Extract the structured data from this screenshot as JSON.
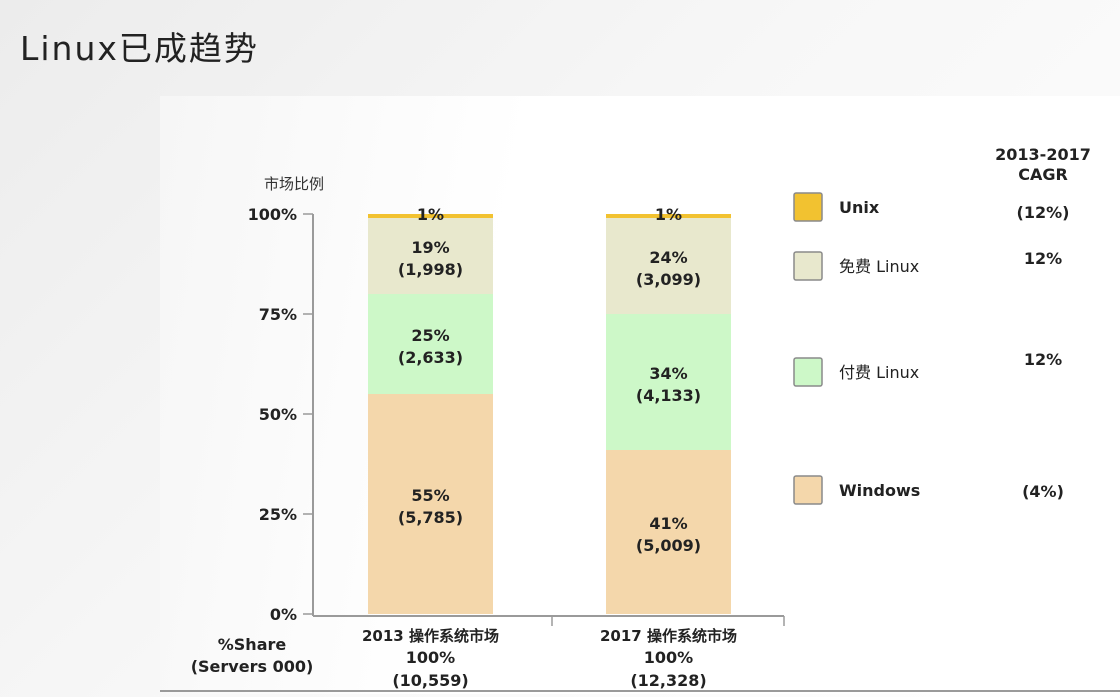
{
  "page": {
    "title": "Linux已成趋势"
  },
  "chart_data": {
    "type": "bar",
    "stacked": true,
    "ylabel": "市场比例",
    "ylim": [
      0,
      100
    ],
    "yticks": [
      "0%",
      "25%",
      "50%",
      "75%",
      "100%"
    ],
    "categories": [
      {
        "name": "2013 操作系统市场",
        "total_pct": "100%",
        "total_servers": "(10,559)"
      },
      {
        "name": "2017 操作系统市场",
        "total_pct": "100%",
        "total_servers": "(12,328)"
      }
    ],
    "row_label": [
      "%Share",
      "(Servers 000)"
    ],
    "series": [
      {
        "name": "Windows",
        "color": "#f4d7ab",
        "cagr": "(4%)",
        "values": [
          55,
          41
        ],
        "servers": [
          "(5,785)",
          "(5,009)"
        ],
        "labels": [
          "55%",
          "41%"
        ]
      },
      {
        "name": "付费 Linux",
        "color": "#cdf8c8",
        "cagr": "12%",
        "values": [
          25,
          34
        ],
        "servers": [
          "(2,633)",
          "(4,133)"
        ],
        "labels": [
          "25%",
          "34%"
        ]
      },
      {
        "name": "免费 Linux",
        "color": "#e8e8cd",
        "cagr": "12%",
        "values": [
          19,
          24
        ],
        "servers": [
          "(1,998)",
          "(3,099)"
        ],
        "labels": [
          "19%",
          "24%"
        ]
      },
      {
        "name": "Unix",
        "color": "#f2c230",
        "cagr": "(12%)",
        "values": [
          1,
          1
        ],
        "servers": [
          "",
          ""
        ],
        "labels": [
          "1%",
          "1%"
        ]
      }
    ],
    "cagr_header": [
      "2013-2017",
      "CAGR"
    ],
    "grid": false,
    "legend_position": "right"
  }
}
